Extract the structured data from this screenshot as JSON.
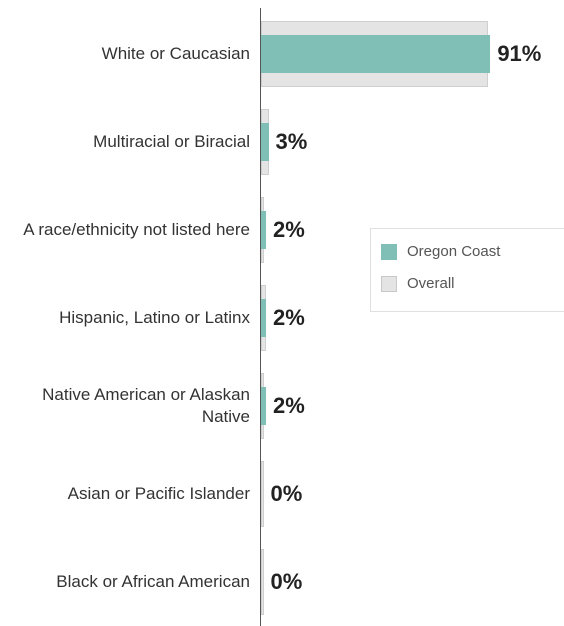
{
  "chart_data": {
    "type": "bar",
    "orientation": "horizontal",
    "categories": [
      "White or Caucasian",
      "Multiracial or Biracial",
      "A race/ethnicity not listed here",
      "Hispanic, Latino or Latinx",
      "Native American or Alaskan Native",
      "Asian or Pacific Islander",
      "Black or African American"
    ],
    "series": [
      {
        "name": "Oregon Coast",
        "color": "#7fbfb5",
        "values": [
          91,
          3,
          2,
          2,
          2,
          0,
          0
        ],
        "value_labels": [
          "91%",
          "3%",
          "2%",
          "2%",
          "2%",
          "0%",
          "0%"
        ]
      },
      {
        "name": "Overall",
        "color": "#e4e4e4",
        "values": [
          90,
          3,
          1,
          2,
          1,
          1,
          1
        ]
      }
    ],
    "xlim": [
      0,
      100
    ],
    "legend": "right"
  }
}
